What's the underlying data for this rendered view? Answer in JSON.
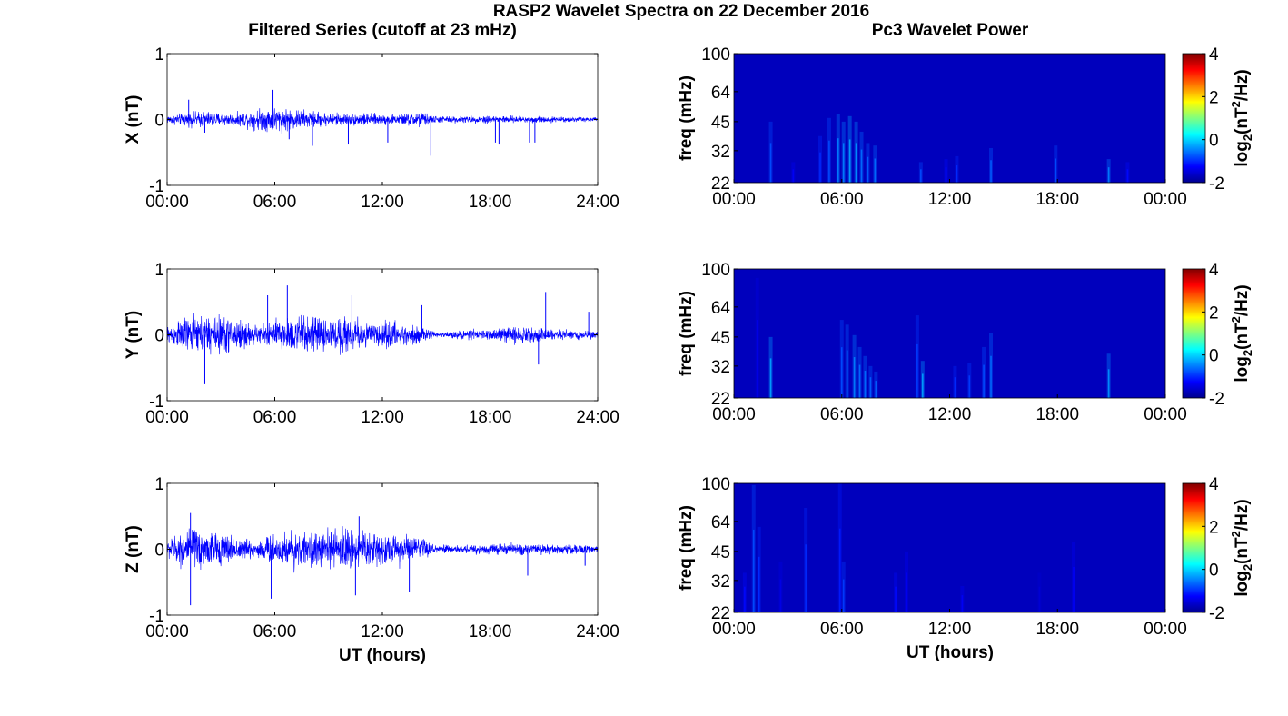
{
  "figure": {
    "title": "RASP2 Wavelet Spectra on 22 December 2016",
    "left_title": "Filtered Series (cutoff at 23 mHz)",
    "right_title": "Pc3 Wavelet Power",
    "xlabel": "UT (hours)"
  },
  "chart_data": [
    {
      "type": "line",
      "panel": "X",
      "ylabel": "X (nT)",
      "ylim": [
        -1,
        1
      ],
      "yticks": [
        -1,
        0,
        1
      ],
      "xlim": [
        0,
        24
      ],
      "xticks": [
        "00:00",
        "06:00",
        "12:00",
        "18:00",
        "24:00"
      ],
      "color": "#0000ff",
      "envelope": {
        "x_hours": [
          0,
          1,
          2,
          3,
          4,
          5,
          6,
          7,
          8,
          9,
          10,
          11,
          12,
          13,
          14,
          15,
          16,
          17,
          18,
          19,
          20,
          21,
          22,
          23,
          24
        ],
        "amplitude_nT": [
          0.1,
          0.15,
          0.2,
          0.15,
          0.15,
          0.25,
          0.3,
          0.25,
          0.2,
          0.15,
          0.15,
          0.15,
          0.12,
          0.12,
          0.2,
          0.08,
          0.08,
          0.08,
          0.1,
          0.08,
          0.08,
          0.08,
          0.06,
          0.06,
          0.05
        ]
      },
      "spikes": [
        {
          "x_hours": 1.2,
          "y": 0.3
        },
        {
          "x_hours": 2.1,
          "y": -0.2
        },
        {
          "x_hours": 5.9,
          "y": 0.45
        },
        {
          "x_hours": 6.8,
          "y": -0.3
        },
        {
          "x_hours": 8.1,
          "y": -0.4
        },
        {
          "x_hours": 10.1,
          "y": -0.38
        },
        {
          "x_hours": 12.3,
          "y": -0.35
        },
        {
          "x_hours": 14.7,
          "y": -0.55
        },
        {
          "x_hours": 18.3,
          "y": -0.35
        },
        {
          "x_hours": 18.5,
          "y": -0.38
        },
        {
          "x_hours": 20.2,
          "y": -0.35
        },
        {
          "x_hours": 20.5,
          "y": -0.35
        }
      ]
    },
    {
      "type": "line",
      "panel": "Y",
      "ylabel": "Y (nT)",
      "ylim": [
        -1,
        1
      ],
      "yticks": [
        -1,
        0,
        1
      ],
      "xlim": [
        0,
        24
      ],
      "xticks": [
        "00:00",
        "06:00",
        "12:00",
        "18:00",
        "24:00"
      ],
      "color": "#0000ff",
      "envelope": {
        "x_hours": [
          0,
          1,
          2,
          3,
          4,
          5,
          6,
          7,
          8,
          9,
          10,
          11,
          12,
          13,
          14,
          15,
          16,
          17,
          18,
          19,
          20,
          21,
          22,
          23,
          24
        ],
        "amplitude_nT": [
          0.2,
          0.4,
          0.45,
          0.45,
          0.4,
          0.2,
          0.35,
          0.45,
          0.45,
          0.35,
          0.45,
          0.3,
          0.3,
          0.3,
          0.2,
          0.05,
          0.08,
          0.12,
          0.12,
          0.2,
          0.18,
          0.15,
          0.12,
          0.1,
          0.08
        ]
      },
      "spikes": [
        {
          "x_hours": 2.1,
          "y": -0.75
        },
        {
          "x_hours": 5.6,
          "y": 0.6
        },
        {
          "x_hours": 6.7,
          "y": 0.75
        },
        {
          "x_hours": 10.3,
          "y": 0.6
        },
        {
          "x_hours": 14.2,
          "y": 0.45
        },
        {
          "x_hours": 20.7,
          "y": -0.45
        },
        {
          "x_hours": 21.1,
          "y": 0.65
        },
        {
          "x_hours": 23.5,
          "y": 0.35
        }
      ]
    },
    {
      "type": "line",
      "panel": "Z",
      "ylabel": "Z (nT)",
      "ylim": [
        -1,
        1
      ],
      "yticks": [
        -1,
        0,
        1
      ],
      "xlim": [
        0,
        24
      ],
      "xticks": [
        "00:00",
        "06:00",
        "12:00",
        "18:00",
        "24:00"
      ],
      "color": "#0000ff",
      "envelope": {
        "x_hours": [
          0,
          1,
          2,
          3,
          4,
          5,
          6,
          7,
          8,
          9,
          10,
          11,
          12,
          13,
          14,
          15,
          16,
          17,
          18,
          19,
          20,
          21,
          22,
          23,
          24
        ],
        "amplitude_nT": [
          0.2,
          0.45,
          0.5,
          0.35,
          0.3,
          0.2,
          0.4,
          0.45,
          0.35,
          0.45,
          0.5,
          0.45,
          0.4,
          0.35,
          0.3,
          0.1,
          0.1,
          0.1,
          0.12,
          0.15,
          0.12,
          0.12,
          0.12,
          0.1,
          0.08
        ]
      },
      "spikes": [
        {
          "x_hours": 1.3,
          "y": 0.55
        },
        {
          "x_hours": 1.3,
          "y": -0.85
        },
        {
          "x_hours": 5.8,
          "y": -0.75
        },
        {
          "x_hours": 10.5,
          "y": -0.7
        },
        {
          "x_hours": 10.7,
          "y": 0.5
        },
        {
          "x_hours": 13.5,
          "y": -0.65
        },
        {
          "x_hours": 20.1,
          "y": -0.4
        },
        {
          "x_hours": 23.3,
          "y": -0.25
        }
      ]
    },
    {
      "type": "heatmap",
      "panel": "X",
      "ylabel": "freq (mHz)",
      "yticks": [
        22,
        32,
        45,
        64,
        100
      ],
      "xlim": [
        0,
        24
      ],
      "xticks": [
        "00:00",
        "06:00",
        "12:00",
        "18:00",
        "00:00"
      ],
      "colorbar": {
        "label": "log2(nT^2/Hz)",
        "ticks": [
          -2,
          0,
          2,
          4
        ],
        "range": [
          -2,
          4
        ]
      },
      "background_value": -2,
      "streaks": [
        {
          "x_hours": 2.05,
          "top_mHz": 45,
          "peak": -0.8
        },
        {
          "x_hours": 3.3,
          "top_mHz": 28,
          "peak": -1.3
        },
        {
          "x_hours": 4.8,
          "top_mHz": 38,
          "peak": -1.0
        },
        {
          "x_hours": 5.3,
          "top_mHz": 47,
          "peak": -0.8
        },
        {
          "x_hours": 5.8,
          "top_mHz": 49,
          "peak": -0.5
        },
        {
          "x_hours": 6.1,
          "top_mHz": 45,
          "peak": -0.5
        },
        {
          "x_hours": 6.45,
          "top_mHz": 48,
          "peak": -0.3
        },
        {
          "x_hours": 6.8,
          "top_mHz": 45,
          "peak": -0.4
        },
        {
          "x_hours": 7.1,
          "top_mHz": 40,
          "peak": -0.6
        },
        {
          "x_hours": 7.45,
          "top_mHz": 35,
          "peak": -0.7
        },
        {
          "x_hours": 7.85,
          "top_mHz": 34,
          "peak": -0.6
        },
        {
          "x_hours": 10.4,
          "top_mHz": 28,
          "peak": -0.8
        },
        {
          "x_hours": 11.8,
          "top_mHz": 29,
          "peak": -1.2
        },
        {
          "x_hours": 12.4,
          "top_mHz": 30,
          "peak": -1.0
        },
        {
          "x_hours": 14.3,
          "top_mHz": 33,
          "peak": -0.7
        },
        {
          "x_hours": 17.9,
          "top_mHz": 34,
          "peak": -0.8
        },
        {
          "x_hours": 20.85,
          "top_mHz": 29,
          "peak": -0.5
        },
        {
          "x_hours": 21.9,
          "top_mHz": 28,
          "peak": -1.2
        }
      ]
    },
    {
      "type": "heatmap",
      "panel": "Y",
      "ylabel": "freq (mHz)",
      "yticks": [
        22,
        32,
        45,
        64,
        100
      ],
      "xlim": [
        0,
        24
      ],
      "xticks": [
        "00:00",
        "06:00",
        "12:00",
        "18:00",
        "00:00"
      ],
      "colorbar": {
        "label": "log2(nT^2/Hz)",
        "ticks": [
          -2,
          0,
          2,
          4
        ],
        "range": [
          -2,
          4
        ]
      },
      "background_value": -2,
      "streaks": [
        {
          "x_hours": 1.3,
          "top_mHz": 90,
          "peak": -1.4
        },
        {
          "x_hours": 2.05,
          "top_mHz": 45,
          "peak": -0.3
        },
        {
          "x_hours": 6.0,
          "top_mHz": 55,
          "peak": -0.8
        },
        {
          "x_hours": 6.3,
          "top_mHz": 52,
          "peak": -0.7
        },
        {
          "x_hours": 6.7,
          "top_mHz": 46,
          "peak": -0.5
        },
        {
          "x_hours": 7.0,
          "top_mHz": 40,
          "peak": -0.6
        },
        {
          "x_hours": 7.3,
          "top_mHz": 36,
          "peak": -0.6
        },
        {
          "x_hours": 7.6,
          "top_mHz": 32,
          "peak": -0.7
        },
        {
          "x_hours": 7.9,
          "top_mHz": 30,
          "peak": -0.7
        },
        {
          "x_hours": 10.2,
          "top_mHz": 58,
          "peak": -0.9
        },
        {
          "x_hours": 10.5,
          "top_mHz": 34,
          "peak": -0.3
        },
        {
          "x_hours": 12.3,
          "top_mHz": 32,
          "peak": -1.0
        },
        {
          "x_hours": 13.1,
          "top_mHz": 33,
          "peak": -0.9
        },
        {
          "x_hours": 13.9,
          "top_mHz": 40,
          "peak": -0.8
        },
        {
          "x_hours": 14.3,
          "top_mHz": 47,
          "peak": -0.6
        },
        {
          "x_hours": 20.85,
          "top_mHz": 37,
          "peak": -0.4
        }
      ]
    },
    {
      "type": "heatmap",
      "panel": "Z",
      "ylabel": "freq (mHz)",
      "yticks": [
        22,
        32,
        45,
        64,
        100
      ],
      "xlim": [
        0,
        24
      ],
      "xticks": [
        "00:00",
        "06:00",
        "12:00",
        "18:00",
        "00:00"
      ],
      "colorbar": {
        "label": "log2(nT^2/Hz)",
        "ticks": [
          -2,
          0,
          2,
          4
        ],
        "range": [
          -2,
          4
        ]
      },
      "background_value": -2,
      "streaks": [
        {
          "x_hours": 0.6,
          "top_mHz": 35,
          "peak": -1.2
        },
        {
          "x_hours": 1.1,
          "top_mHz": 98,
          "peak": -0.8
        },
        {
          "x_hours": 1.4,
          "top_mHz": 60,
          "peak": -1.0
        },
        {
          "x_hours": 2.6,
          "top_mHz": 40,
          "peak": -1.4
        },
        {
          "x_hours": 4.0,
          "top_mHz": 75,
          "peak": -1.0
        },
        {
          "x_hours": 5.9,
          "top_mHz": 100,
          "peak": -1.1
        },
        {
          "x_hours": 6.1,
          "top_mHz": 40,
          "peak": -0.9
        },
        {
          "x_hours": 9.0,
          "top_mHz": 35,
          "peak": -1.2
        },
        {
          "x_hours": 9.6,
          "top_mHz": 45,
          "peak": -1.3
        },
        {
          "x_hours": 12.7,
          "top_mHz": 30,
          "peak": -1.3
        },
        {
          "x_hours": 17.0,
          "top_mHz": 35,
          "peak": -1.5
        },
        {
          "x_hours": 18.9,
          "top_mHz": 50,
          "peak": -1.3
        }
      ]
    }
  ]
}
